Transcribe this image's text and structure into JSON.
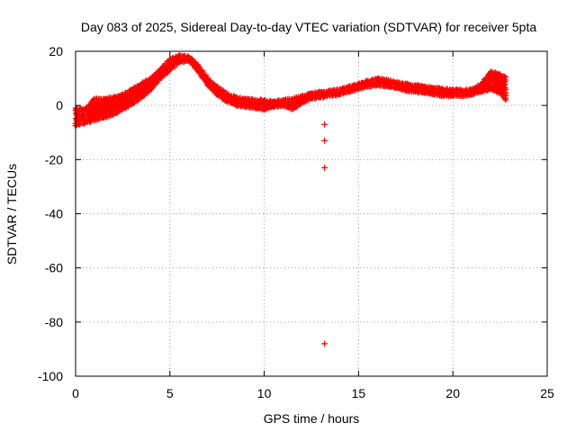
{
  "chart_data": {
    "type": "scatter",
    "title": "Day 083 of 2025, Sidereal Day-to-day VTEC variation (SDTVAR) for receiver 5pta",
    "xlabel": "GPS time / hours",
    "ylabel": "SDTVAR / TECUs",
    "xlim": [
      0,
      25
    ],
    "ylim": [
      -100,
      20
    ],
    "xticks": [
      0,
      5,
      10,
      15,
      20,
      25
    ],
    "yticks": [
      -100,
      -80,
      -60,
      -40,
      -20,
      0,
      20
    ],
    "grid": true,
    "marker": "+",
    "color": "#ff0000",
    "series": [
      {
        "name": "SDTVAR band upper",
        "x": [
          0.0,
          0.5,
          1.0,
          1.5,
          2.0,
          2.5,
          3.0,
          3.5,
          4.0,
          4.5,
          5.0,
          5.5,
          6.0,
          6.5,
          7.0,
          7.5,
          8.0,
          8.5,
          9.0,
          9.5,
          10.0,
          10.5,
          11.0,
          11.5,
          12.0,
          12.5,
          13.0,
          13.5,
          14.0,
          14.5,
          15.0,
          15.5,
          16.0,
          16.5,
          17.0,
          17.5,
          18.0,
          18.5,
          19.0,
          19.5,
          20.0,
          20.5,
          21.0,
          21.5,
          22.0,
          22.5,
          22.8
        ],
        "y": [
          -1.0,
          -1.5,
          2.5,
          2.5,
          3.0,
          4.0,
          6.0,
          8.0,
          10.0,
          13.5,
          17.0,
          18.5,
          18.0,
          15.0,
          10.0,
          7.0,
          4.5,
          3.0,
          2.5,
          2.0,
          2.0,
          1.5,
          2.0,
          2.5,
          3.5,
          4.5,
          5.0,
          5.5,
          6.0,
          7.0,
          8.0,
          9.0,
          10.0,
          9.5,
          8.5,
          8.0,
          7.5,
          7.0,
          6.5,
          6.0,
          6.0,
          5.5,
          6.0,
          8.0,
          12.5,
          11.5,
          10.5
        ]
      },
      {
        "name": "SDTVAR band lower",
        "x": [
          0.0,
          0.5,
          1.0,
          1.5,
          2.0,
          2.5,
          3.0,
          3.5,
          4.0,
          4.5,
          5.0,
          5.5,
          6.0,
          6.5,
          7.0,
          7.5,
          8.0,
          8.5,
          9.0,
          9.5,
          10.0,
          10.5,
          11.0,
          11.5,
          12.0,
          12.5,
          13.0,
          13.5,
          14.0,
          14.5,
          15.0,
          15.5,
          16.0,
          16.5,
          17.0,
          17.5,
          18.0,
          18.5,
          19.0,
          19.5,
          20.0,
          20.5,
          21.0,
          21.5,
          22.0,
          22.5,
          22.8
        ],
        "y": [
          -7.5,
          -6.5,
          -5.5,
          -4.5,
          -3.5,
          -1.5,
          0.5,
          3.0,
          6.0,
          10.0,
          13.0,
          16.0,
          16.5,
          12.5,
          7.5,
          4.0,
          1.5,
          0.0,
          -0.5,
          -1.0,
          -1.5,
          -0.5,
          0.0,
          -1.5,
          1.0,
          2.5,
          3.0,
          3.5,
          4.0,
          5.0,
          6.0,
          7.0,
          7.5,
          7.0,
          6.5,
          5.5,
          5.0,
          4.5,
          4.0,
          3.5,
          3.5,
          3.5,
          4.0,
          5.0,
          6.0,
          4.5,
          2.0
        ]
      },
      {
        "name": "Outliers near 13.2 h",
        "x": [
          13.2,
          13.2,
          13.2,
          13.2
        ],
        "y": [
          -7.0,
          -13.0,
          -23.0,
          -88.0
        ]
      }
    ]
  }
}
